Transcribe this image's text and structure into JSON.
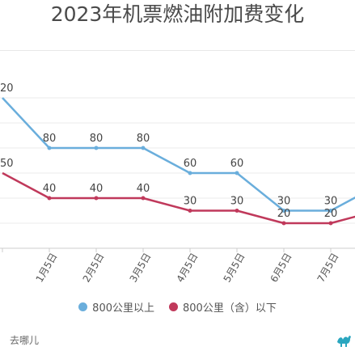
{
  "header": {
    "title": "2023年机票燃油附加费变化"
  },
  "footer": {
    "source": "去哪儿"
  },
  "chart_data": {
    "type": "line",
    "categories": [
      "1月5日",
      "2月5日",
      "3月5日",
      "4月5日",
      "5月5日",
      "6月5日",
      "7月5日"
    ],
    "series": [
      {
        "name": "800公里以上",
        "color": "#6aaedc",
        "values": [
          80,
          80,
          80,
          60,
          60,
          30,
          30
        ]
      },
      {
        "name": "800公里（含）以下",
        "color": "#c0395b",
        "values": [
          40,
          40,
          40,
          30,
          30,
          20,
          20
        ]
      }
    ],
    "partial_edge_points": {
      "left": {
        "label": "",
        "values": [
          120,
          60
        ]
      },
      "right": {
        "label": "",
        "values": [
          50,
          30
        ]
      }
    },
    "visible_clipped_labels": {
      "left_top": "20",
      "left_bottom": "50"
    },
    "ylim": [
      0,
      130
    ],
    "grid": true,
    "legend_position": "bottom"
  }
}
